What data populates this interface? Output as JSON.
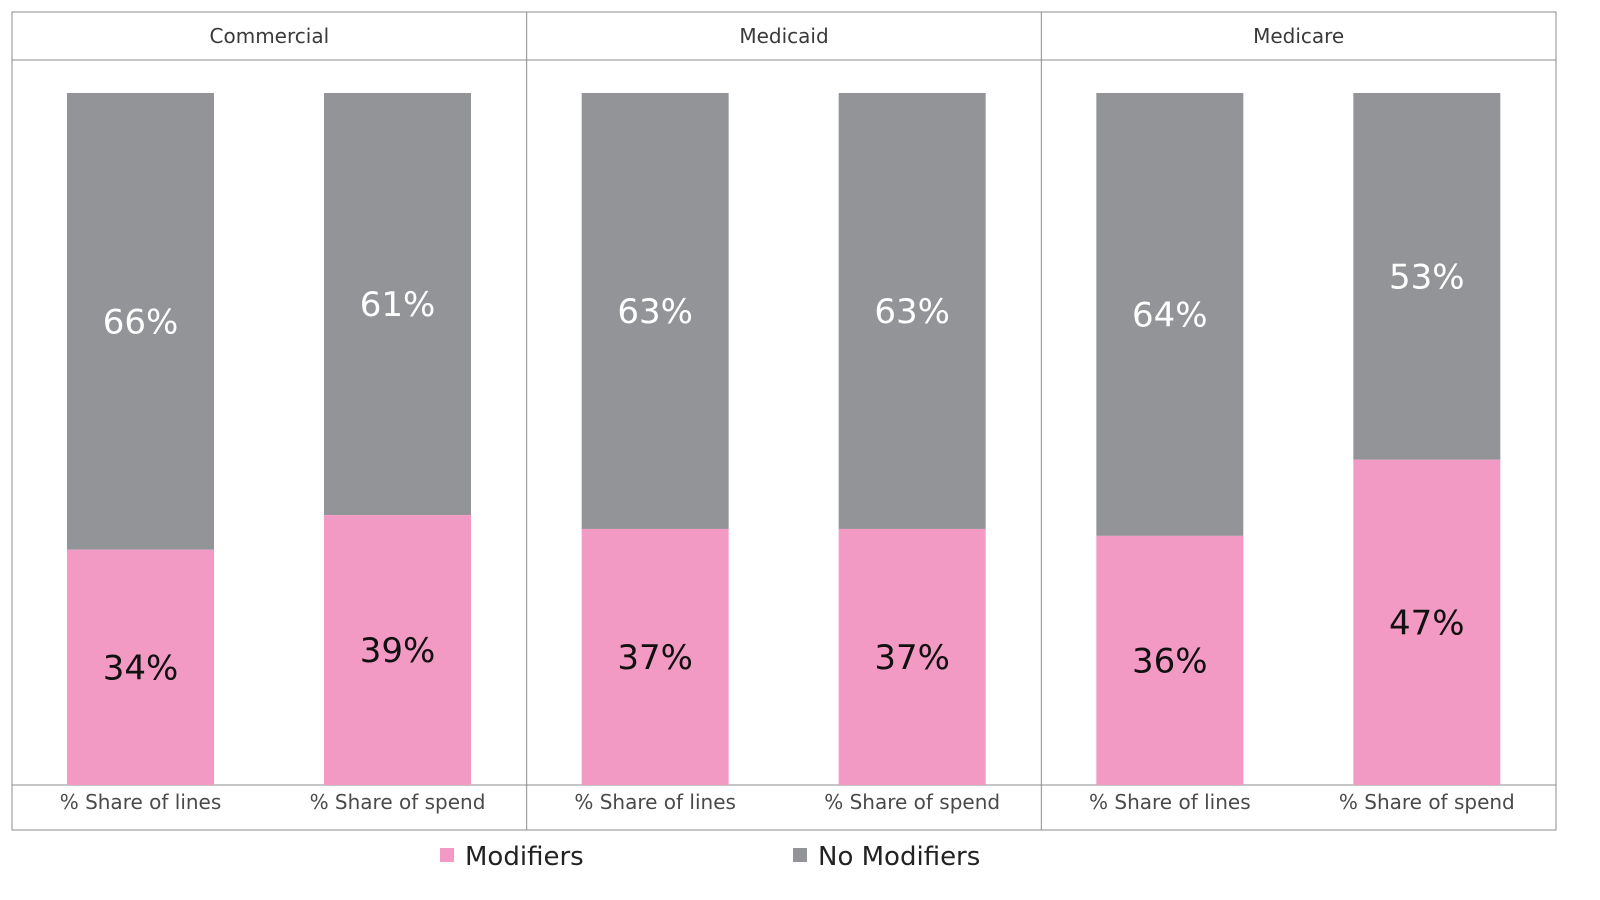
{
  "chart_data": {
    "type": "bar",
    "stacked": true,
    "percent": true,
    "panels": [
      {
        "title": "Commercial",
        "categories": [
          "% Share of lines",
          "% Share of spend"
        ],
        "series": [
          {
            "name": "Modifiers",
            "values": [
              34,
              39
            ],
            "labels": [
              "34%",
              "39%"
            ]
          },
          {
            "name": "No Modifiers",
            "values": [
              66,
              61
            ],
            "labels": [
              "66%",
              "61%"
            ]
          }
        ]
      },
      {
        "title": "Medicaid",
        "categories": [
          "% Share of lines",
          "% Share of spend"
        ],
        "series": [
          {
            "name": "Modifiers",
            "values": [
              37,
              37
            ],
            "labels": [
              "37%",
              "37%"
            ]
          },
          {
            "name": "No Modifiers",
            "values": [
              63,
              63
            ],
            "labels": [
              "63%",
              "63%"
            ]
          }
        ]
      },
      {
        "title": "Medicare",
        "categories": [
          "% Share of lines",
          "% Share of spend"
        ],
        "series": [
          {
            "name": "Modifiers",
            "values": [
              36,
              47
            ],
            "labels": [
              "36%",
              "47%"
            ]
          },
          {
            "name": "No Modifiers",
            "values": [
              64,
              53
            ],
            "labels": [
              "64%",
              "53%"
            ]
          }
        ]
      }
    ],
    "ylim": [
      0,
      100
    ],
    "grid": false,
    "legend": {
      "position": "bottom",
      "items": [
        {
          "name": "Modifiers",
          "color": "#f29ac3"
        },
        {
          "name": "No Modifiers",
          "color": "#939497"
        }
      ]
    },
    "colors": {
      "Modifiers": "#f29ac3",
      "No Modifiers": "#939497"
    }
  }
}
